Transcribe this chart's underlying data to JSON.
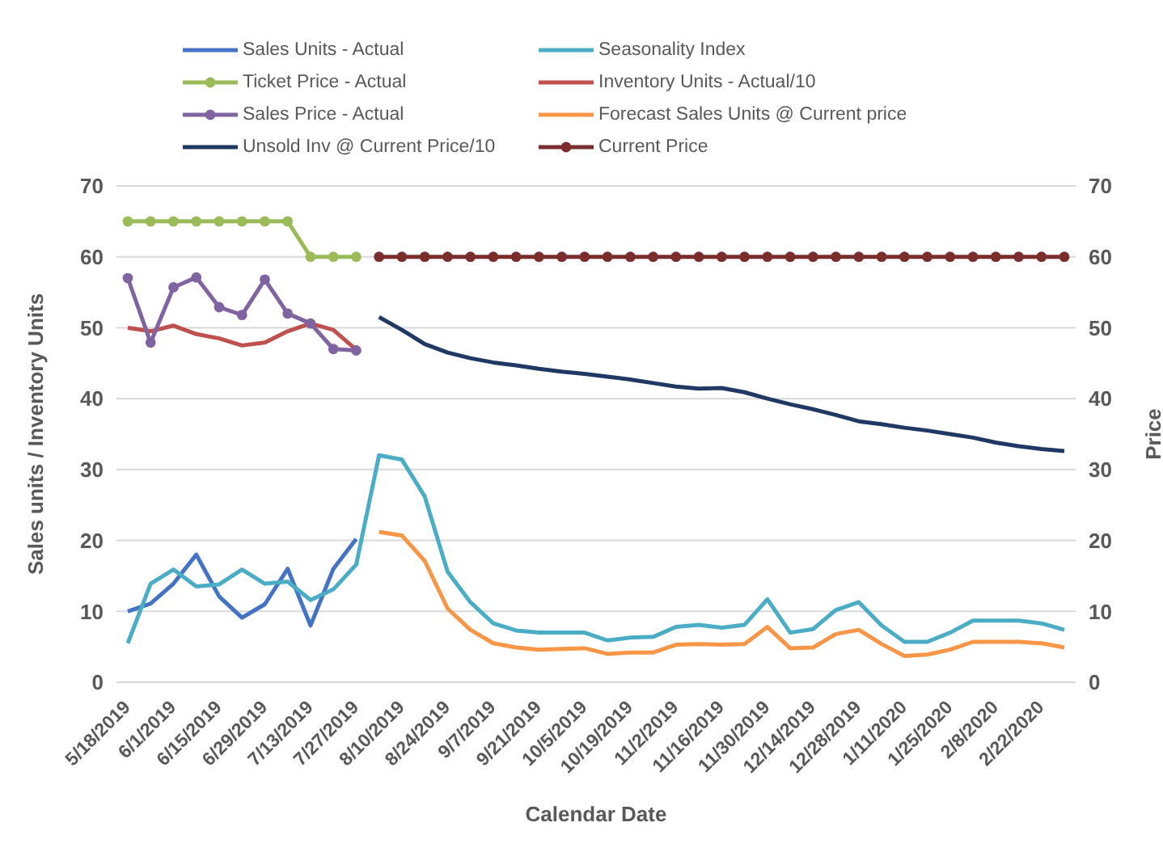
{
  "chart_data": {
    "type": "line",
    "xlabel": "Calendar Date",
    "ylabel": "Sales units / Inventory Units",
    "y2label": "Price",
    "categories": [
      "5/18/2019",
      null,
      "6/1/2019",
      null,
      "6/15/2019",
      null,
      "6/29/2019",
      null,
      "7/13/2019",
      null,
      "7/27/2019",
      null,
      "8/10/2019",
      null,
      "8/24/2019",
      null,
      "9/7/2019",
      null,
      "9/21/2019",
      null,
      "10/5/2019",
      null,
      "10/19/2019",
      null,
      "11/2/2019",
      null,
      "11/16/2019",
      null,
      "11/30/2019",
      null,
      "12/14/2019",
      null,
      "12/28/2019",
      null,
      "1/11/2020",
      null,
      "1/25/2020",
      null,
      "2/8/2020",
      null,
      "2/22/2020",
      null
    ],
    "ylim": [
      0,
      70
    ],
    "yticks": [
      0,
      10,
      20,
      30,
      40,
      50,
      60,
      70
    ],
    "y2lim": [
      0,
      70
    ],
    "y2ticks": [
      0,
      10,
      20,
      30,
      40,
      50,
      60,
      70
    ],
    "grid": "y",
    "legend": "top",
    "marker": "none",
    "series": [
      {
        "name": "Sales Units - Actual",
        "color": "#4472c4",
        "values": [
          10.0,
          11.1,
          13.9,
          18.0,
          12.1,
          9.1,
          11.0,
          16.0,
          8.0,
          16.0,
          20.2,
          null,
          null,
          null,
          null,
          null,
          null,
          null,
          null,
          null,
          null,
          null,
          null,
          null,
          null,
          null,
          null,
          null,
          null,
          null,
          null,
          null,
          null,
          null,
          null,
          null,
          null,
          null,
          null,
          null,
          null,
          null
        ]
      },
      {
        "name": "Seasonality Index",
        "color": "#4bacc6",
        "values": [
          5.5,
          13.9,
          15.9,
          13.5,
          13.8,
          15.9,
          13.9,
          14.2,
          11.6,
          13.1,
          16.6,
          32.0,
          31.4,
          26.2,
          15.6,
          11.3,
          8.3,
          7.3,
          7.0,
          7.0,
          7.0,
          5.9,
          6.3,
          6.4,
          7.8,
          8.1,
          7.7,
          8.1,
          11.7,
          7.0,
          7.5,
          10.2,
          11.3,
          8.0,
          5.7,
          5.7,
          7.0,
          8.7,
          8.7,
          8.7,
          8.3,
          7.4
        ]
      },
      {
        "name": "Ticket Price - Actual",
        "color": "#9bbb59",
        "marker": "circle",
        "values": [
          65,
          65,
          65,
          65,
          65,
          65,
          65,
          65,
          60,
          60,
          60,
          null,
          null,
          null,
          null,
          null,
          null,
          null,
          null,
          null,
          null,
          null,
          null,
          null,
          null,
          null,
          null,
          null,
          null,
          null,
          null,
          null,
          null,
          null,
          null,
          null,
          null,
          null,
          null,
          null,
          null,
          null
        ]
      },
      {
        "name": "Inventory Units - Actual/10",
        "color": "#c0504d",
        "values": [
          50.0,
          49.5,
          50.3,
          49.1,
          48.5,
          47.5,
          47.9,
          49.5,
          50.6,
          49.7,
          46.9,
          null,
          null,
          null,
          null,
          null,
          null,
          null,
          null,
          null,
          null,
          null,
          null,
          null,
          null,
          null,
          null,
          null,
          null,
          null,
          null,
          null,
          null,
          null,
          null,
          null,
          null,
          null,
          null,
          null,
          null,
          null
        ]
      },
      {
        "name": "Sales Price - Actual",
        "color": "#8064a2",
        "marker": "circle",
        "values": [
          57.0,
          47.9,
          55.7,
          57.1,
          52.9,
          51.8,
          56.8,
          52.0,
          50.6,
          47.0,
          46.8,
          null,
          null,
          null,
          null,
          null,
          null,
          null,
          null,
          null,
          null,
          null,
          null,
          null,
          null,
          null,
          null,
          null,
          null,
          null,
          null,
          null,
          null,
          null,
          null,
          null,
          null,
          null,
          null,
          null,
          null,
          null
        ]
      },
      {
        "name": "Forecast Sales Units @ Current price",
        "color": "#f79646",
        "values": [
          null,
          null,
          null,
          null,
          null,
          null,
          null,
          null,
          null,
          null,
          null,
          21.2,
          20.7,
          17.1,
          10.4,
          7.4,
          5.5,
          4.9,
          4.6,
          4.7,
          4.8,
          4.0,
          4.2,
          4.2,
          5.3,
          5.4,
          5.3,
          5.4,
          7.8,
          4.8,
          4.9,
          6.8,
          7.4,
          5.4,
          3.7,
          3.9,
          4.6,
          5.7,
          5.7,
          5.7,
          5.5,
          4.9
        ]
      },
      {
        "name": "Unsold Inv @ Current Price/10",
        "color": "#1f3864",
        "values": [
          null,
          null,
          null,
          null,
          null,
          null,
          null,
          null,
          null,
          null,
          null,
          51.5,
          49.7,
          47.7,
          46.5,
          45.7,
          45.1,
          44.7,
          44.2,
          43.8,
          43.5,
          43.1,
          42.7,
          42.2,
          41.7,
          41.4,
          41.5,
          40.9,
          40.0,
          39.2,
          38.5,
          37.7,
          36.8,
          36.4,
          35.9,
          35.5,
          35.0,
          34.5,
          33.8,
          33.3,
          32.9,
          32.6
        ]
      },
      {
        "name": "Current Price",
        "color": "#7b2c2c",
        "marker": "circle",
        "values": [
          null,
          null,
          null,
          null,
          null,
          null,
          null,
          null,
          null,
          null,
          null,
          60,
          60,
          60,
          60,
          60,
          60,
          60,
          60,
          60,
          60,
          60,
          60,
          60,
          60,
          60,
          60,
          60,
          60,
          60,
          60,
          60,
          60,
          60,
          60,
          60,
          60,
          60,
          60,
          60,
          60,
          60
        ]
      }
    ]
  }
}
